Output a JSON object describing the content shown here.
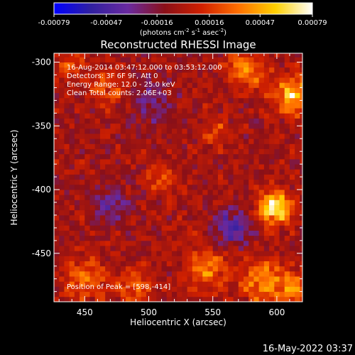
{
  "chart_data": {
    "type": "heatmap",
    "title": "Reconstructed RHESSI Image",
    "xlabel": "Heliocentric X (arcsec)",
    "ylabel": "Heliocentric Y (arcsec)",
    "xlim": [
      426,
      620
    ],
    "ylim": [
      -488,
      -293
    ],
    "x_ticks": [
      "450",
      "500",
      "550",
      "600"
    ],
    "x_tick_values": [
      450,
      500,
      550,
      600
    ],
    "y_ticks": [
      "-300",
      "-350",
      "-400",
      "-450"
    ],
    "y_tick_values": [
      -300,
      -350,
      -400,
      -450
    ],
    "colorbar": {
      "ticks": [
        "-0.00079",
        "-0.00047",
        "-0.00016",
        "0.00016",
        "0.00047",
        "0.00079"
      ],
      "tick_values": [
        -0.00079,
        -0.00047,
        -0.00016,
        0.00016,
        0.00047,
        0.00079
      ],
      "range": [
        -0.00079,
        0.00079
      ],
      "units_label": "(photons cm",
      "units_exp1": "-2",
      "units_mid": " s",
      "units_exp2": "-1",
      "units_mid2": " asec",
      "units_exp3": "-2",
      "units_end": ")",
      "colormap_stops": [
        "#0000ff",
        "#3020a0",
        "#6a2aa0",
        "#8a1018",
        "#d02000",
        "#ff7000",
        "#ffd000",
        "#ffffff"
      ]
    },
    "info_lines": [
      "16-Aug-2014 03:47:12.000 to 03:53:12.000",
      "Detectors: 3F 6F 9F, Att 0",
      "Energy Range: 12.0 - 25.0 keV",
      "Clean    Total counts: 2.06E+03"
    ],
    "peak_label": "Position of Peak = [598,-414]",
    "peak": [
      598,
      -414
    ],
    "sources": [
      {
        "x": 598,
        "y": -414,
        "peak": 0.00079,
        "sigma": 9
      },
      {
        "x": 612,
        "y": -325,
        "peak": 0.00055,
        "sigma": 11
      },
      {
        "x": 575,
        "y": -305,
        "peak": 0.00042,
        "sigma": 10
      },
      {
        "x": 590,
        "y": -472,
        "peak": 0.00045,
        "sigma": 12
      },
      {
        "x": 615,
        "y": -478,
        "peak": 0.0004,
        "sigma": 9
      },
      {
        "x": 450,
        "y": -472,
        "peak": 0.00038,
        "sigma": 11
      },
      {
        "x": 490,
        "y": -478,
        "peak": 0.0003,
        "sigma": 10
      },
      {
        "x": 545,
        "y": -462,
        "peak": 0.00035,
        "sigma": 12
      },
      {
        "x": 510,
        "y": -392,
        "peak": 0.0003,
        "sigma": 8
      },
      {
        "x": 470,
        "y": -320,
        "peak": 0.00028,
        "sigma": 10
      },
      {
        "x": 440,
        "y": -300,
        "peak": 0.0003,
        "sigma": 8
      },
      {
        "x": 555,
        "y": -355,
        "peak": 0.00022,
        "sigma": 8
      },
      {
        "x": 565,
        "y": -430,
        "peak": -0.0004,
        "sigma": 10
      },
      {
        "x": 470,
        "y": -412,
        "peak": -0.0003,
        "sigma": 10
      },
      {
        "x": 500,
        "y": -330,
        "peak": -0.00025,
        "sigma": 12
      }
    ]
  },
  "timestamp": "16-May-2022 03:37"
}
